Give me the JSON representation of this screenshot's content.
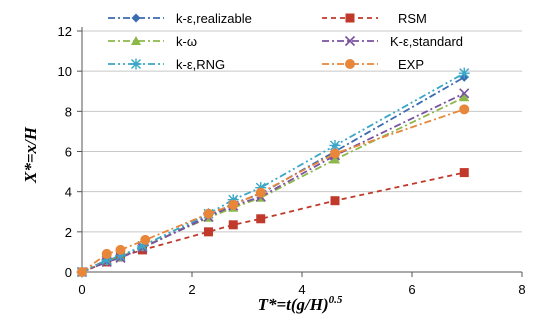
{
  "chart_data": {
    "type": "line",
    "title": "",
    "xlabel": "T*=t(g/H)",
    "xlabel_exp": "0.5",
    "ylabel": "X*=x/H",
    "xlim": [
      0,
      8
    ],
    "ylim": [
      0,
      12
    ],
    "xticks": [
      0,
      2,
      4,
      6,
      8
    ],
    "yticks": [
      0,
      2,
      4,
      6,
      8,
      10,
      12
    ],
    "xtick_labels": [
      "0",
      "2",
      "4",
      "6",
      "8"
    ],
    "ytick_labels": [
      "0",
      "2",
      "4",
      "6",
      "8",
      "10",
      "12"
    ],
    "grid": "horizontal",
    "legend_position": "top",
    "series": [
      {
        "name": "k-ε,realizable",
        "color": "#3b6bb1",
        "line": "dashdot",
        "marker": "diamond",
        "x": [
          0,
          0.45,
          0.7,
          1.1,
          2.3,
          2.75,
          3.25,
          4.6,
          6.95
        ],
        "y": [
          0,
          0.6,
          0.75,
          1.2,
          2.8,
          3.4,
          3.9,
          6.0,
          9.7
        ]
      },
      {
        "name": "RSM",
        "color": "#c0392b",
        "line": "dash",
        "marker": "square",
        "x": [
          0,
          0.45,
          0.7,
          1.1,
          2.3,
          2.75,
          3.25,
          4.6,
          6.95
        ],
        "y": [
          0,
          0.5,
          0.75,
          1.1,
          2.0,
          2.35,
          2.65,
          3.55,
          4.95
        ]
      },
      {
        "name": "k-ω",
        "color": "#8cb84a",
        "line": "dashdot",
        "marker": "triangle",
        "x": [
          0,
          0.45,
          0.7,
          1.1,
          2.3,
          2.75,
          3.25,
          4.6,
          6.95
        ],
        "y": [
          0,
          0.55,
          0.75,
          1.25,
          2.7,
          3.2,
          3.7,
          5.6,
          8.7
        ]
      },
      {
        "name": "K-ε,standard",
        "color": "#7a52a0",
        "line": "dashdot",
        "marker": "x",
        "x": [
          0,
          0.45,
          0.7,
          1.1,
          2.3,
          2.75,
          3.25,
          4.6,
          6.95
        ],
        "y": [
          0,
          0.5,
          0.7,
          1.2,
          2.75,
          3.3,
          3.75,
          5.8,
          8.9
        ]
      },
      {
        "name": "k-ε,RNG",
        "color": "#3aa6c8",
        "line": "dashdotdot",
        "marker": "asterisk",
        "x": [
          0,
          0.45,
          0.7,
          1.1,
          2.3,
          2.75,
          3.25,
          4.6,
          6.95
        ],
        "y": [
          0,
          0.6,
          0.8,
          1.3,
          2.9,
          3.6,
          4.2,
          6.3,
          9.9
        ]
      },
      {
        "name": "EXP",
        "color": "#e8863a",
        "line": "dashdot",
        "marker": "circle",
        "x": [
          0,
          0.45,
          0.7,
          1.15,
          2.3,
          2.75,
          3.25,
          4.6,
          6.95
        ],
        "y": [
          0,
          0.9,
          1.1,
          1.6,
          2.9,
          3.35,
          3.95,
          5.9,
          8.1
        ]
      }
    ]
  }
}
